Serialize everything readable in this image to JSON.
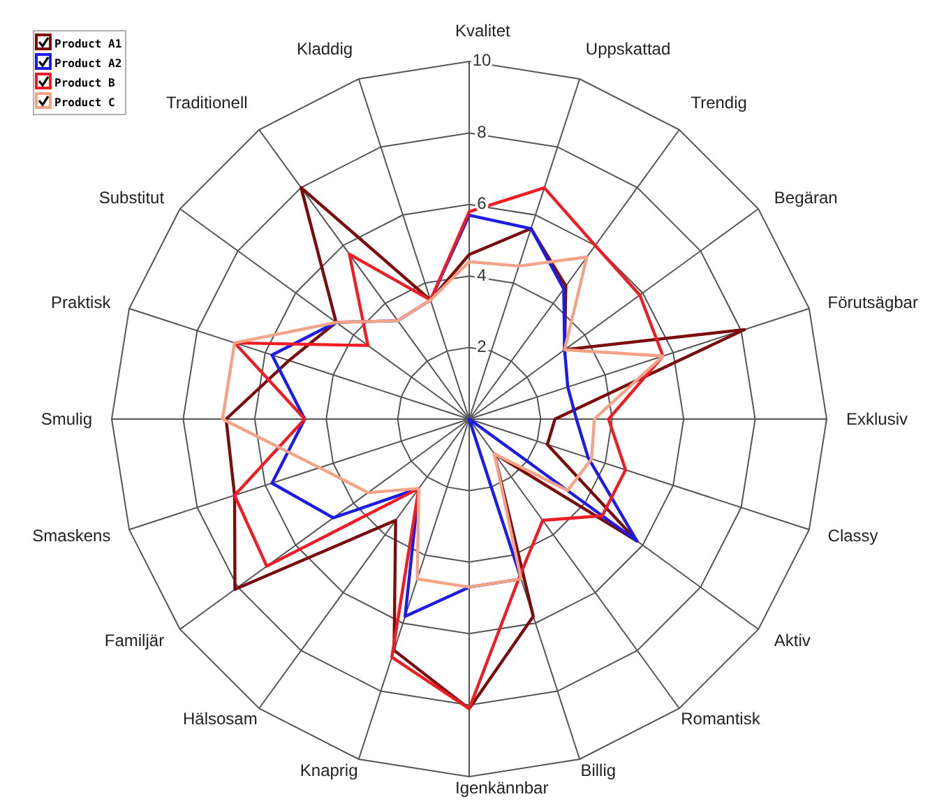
{
  "chart_data": {
    "type": "radar",
    "categories": [
      "Kvalitet",
      "Uppskattad",
      "Trendig",
      "Begäran",
      "Förutsägbar",
      "Exklusiv",
      "Classy",
      "Aktiv",
      "Romantisk",
      "Billig",
      "Igenkännbar",
      "Knaprig",
      "Hälsosam",
      "Familjär",
      "Smaskens",
      "Smulig",
      "Praktisk",
      "Substitut",
      "Traditionell",
      "Kladdig"
    ],
    "series": [
      {
        "name": "Product A1",
        "color": "#7b0c0c",
        "values": [
          4.6,
          5.6,
          4.6,
          3.3,
          8.1,
          2.4,
          2.3,
          5.8,
          1.2,
          5.8,
          8.1,
          6.8,
          3.5,
          8.1,
          6.9,
          6.8,
          5.3,
          4.6,
          8.0,
          3.5
        ]
      },
      {
        "name": "Product A2",
        "color": "#1c1ce6",
        "values": [
          5.7,
          5.6,
          4.5,
          3.3,
          2.9,
          3.0,
          3.5,
          5.8,
          0,
          4.7,
          4.7,
          5.8,
          2.4,
          4.7,
          5.8,
          4.6,
          5.8,
          4.6,
          3.4,
          3.5
        ]
      },
      {
        "name": "Product B",
        "color": "#ee1c24",
        "values": [
          5.8,
          6.8,
          6.0,
          5.9,
          5.7,
          3.9,
          4.6,
          4.6,
          3.5,
          4.6,
          8.1,
          7.0,
          2.4,
          7.0,
          6.9,
          4.6,
          6.9,
          3.5,
          5.7,
          3.5
        ]
      },
      {
        "name": "Product C",
        "color": "#f4a386",
        "values": [
          4.4,
          4.5,
          5.6,
          3.3,
          5.7,
          3.5,
          3.6,
          3.4,
          1.2,
          4.7,
          4.7,
          4.7,
          2.4,
          3.5,
          4.4,
          6.9,
          6.9,
          4.6,
          3.4,
          3.5
        ]
      }
    ],
    "ylim": [
      0,
      10
    ],
    "yticks": [
      2,
      4,
      6,
      8,
      10
    ],
    "grid": true,
    "legend": "top left",
    "marker": "none"
  }
}
